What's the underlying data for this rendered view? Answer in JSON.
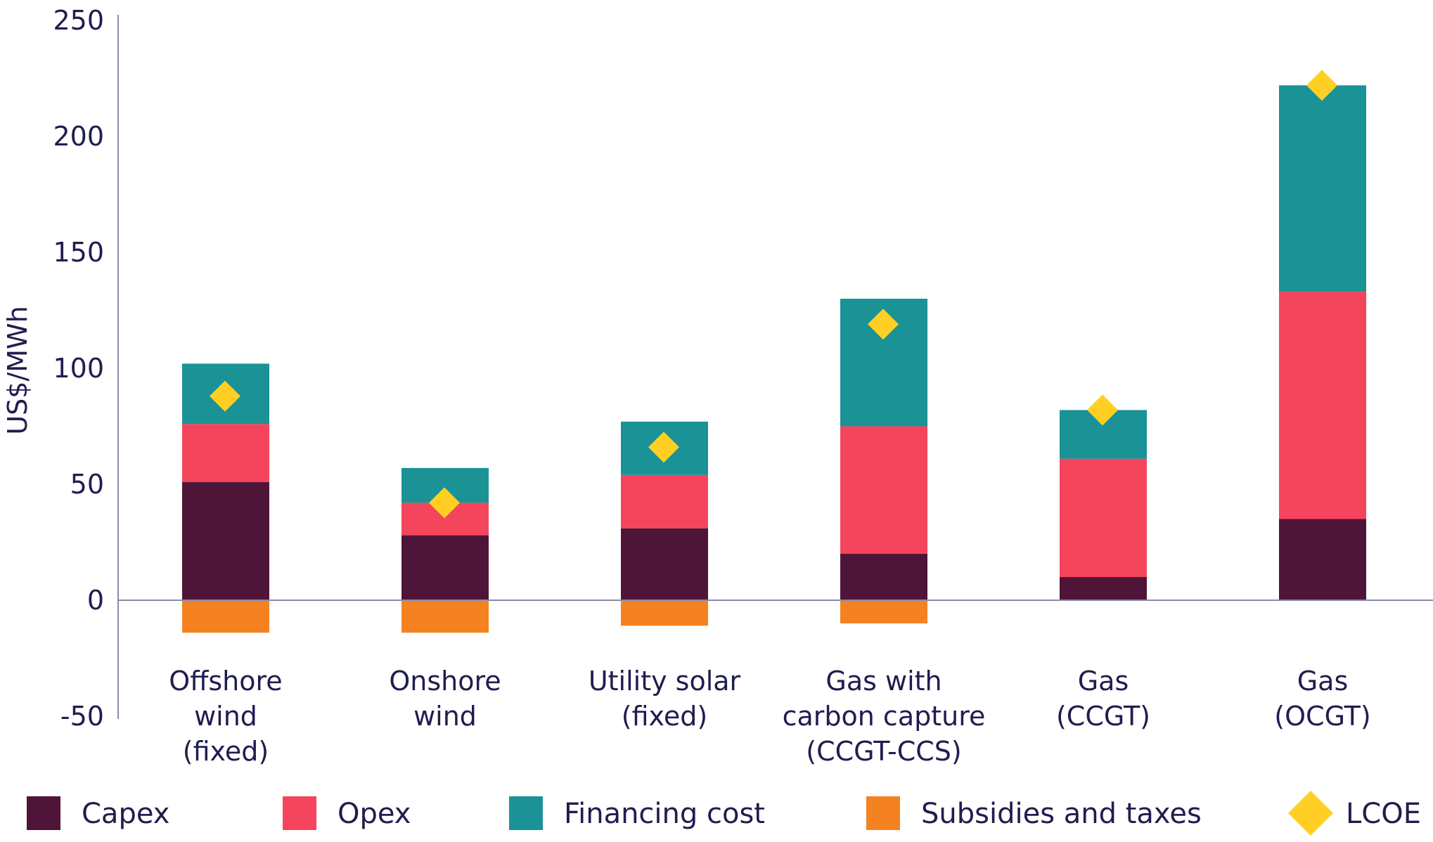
{
  "chart_data": {
    "type": "bar",
    "stacked": true,
    "ylabel": "US$/MWh",
    "ylim": [
      -50,
      250
    ],
    "yticks": [
      -50,
      0,
      50,
      100,
      150,
      200,
      250
    ],
    "grid": false,
    "legend_position": "bottom",
    "categories": [
      [
        "Offshore",
        "wind",
        "(fixed)"
      ],
      [
        "Onshore",
        "wind"
      ],
      [
        "Utility solar",
        "(fixed)"
      ],
      [
        "Gas with",
        "carbon capture",
        "(CCGT-CCS)"
      ],
      [
        "Gas",
        "(CCGT)"
      ],
      [
        "Gas",
        "(OCGT)"
      ]
    ],
    "series": [
      {
        "name": "Capex",
        "color": "#4f1538",
        "values": [
          51,
          28,
          31,
          20,
          10,
          35
        ]
      },
      {
        "name": "Opex",
        "color": "#f5455c",
        "values": [
          25,
          14,
          23,
          55,
          51,
          98
        ]
      },
      {
        "name": "Financing cost",
        "color": "#1a9296",
        "values": [
          26,
          15,
          23,
          55,
          21,
          89
        ]
      },
      {
        "name": "Subsidies and taxes",
        "color": "#f58220",
        "values": [
          -14,
          -14,
          -11,
          -10,
          0,
          0
        ]
      }
    ],
    "lcoe": {
      "name": "LCOE",
      "color": "#ffd023",
      "values": [
        88,
        42,
        66,
        119,
        82,
        222
      ]
    }
  }
}
